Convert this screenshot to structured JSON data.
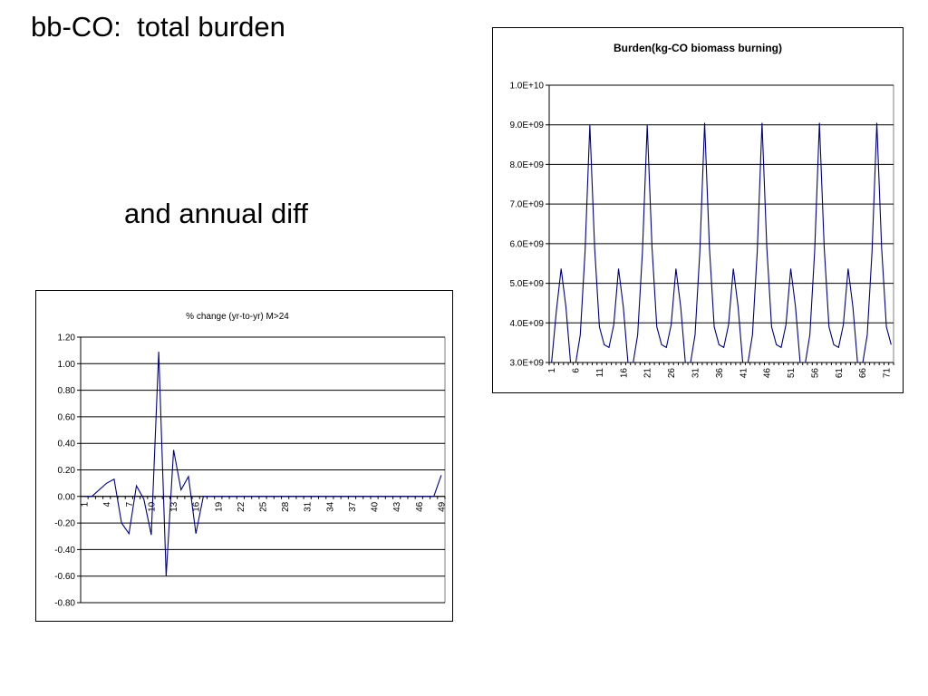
{
  "slide": {
    "title": "bb-CO:  total burden",
    "subtitle": "and annual diff"
  },
  "colors": {
    "series": "#000080",
    "grid": "#000000",
    "background": "#ffffff"
  },
  "chart_data": [
    {
      "type": "line",
      "title": "Burden(kg-CO biomass burning)",
      "xlabel": "",
      "ylabel": "",
      "ylim": [
        3000000000,
        10000000000
      ],
      "y_ticks": [
        3000000000,
        4000000000,
        5000000000,
        6000000000,
        7000000000,
        8000000000,
        9000000000,
        10000000000
      ],
      "y_tick_labels": [
        "3.0E+09",
        "4.0E+09",
        "5.0E+09",
        "6.0E+09",
        "7.0E+09",
        "8.0E+09",
        "9.0E+09",
        "1.0E+10"
      ],
      "x_tick_labels": [
        "1",
        "6",
        "11",
        "16",
        "21",
        "26",
        "31",
        "36",
        "41",
        "46",
        "51",
        "56",
        "61",
        "66",
        "71"
      ],
      "grid": true,
      "legend": "none",
      "series": [
        {
          "values": [
            3000000000,
            4300000000,
            5370000000,
            4400000000,
            2950000000,
            2950000000,
            3700000000,
            5800000000,
            9000000000,
            5900000000,
            3900000000,
            3450000000,
            3380000000,
            3950000000,
            5370000000,
            4400000000,
            2950000000,
            2950000000,
            3700000000,
            5800000000,
            9000000000,
            5900000000,
            3900000000,
            3450000000,
            3380000000,
            3950000000,
            5370000000,
            4400000000,
            2950000000,
            2950000000,
            3700000000,
            5800000000,
            9050000000,
            5900000000,
            3900000000,
            3450000000,
            3380000000,
            3950000000,
            5370000000,
            4400000000,
            2950000000,
            2950000000,
            3700000000,
            5800000000,
            9050000000,
            5900000000,
            3900000000,
            3450000000,
            3380000000,
            3950000000,
            5370000000,
            4400000000,
            2950000000,
            2950000000,
            3700000000,
            5800000000,
            9050000000,
            5900000000,
            3900000000,
            3450000000,
            3380000000,
            3950000000,
            5370000000,
            4400000000,
            2950000000,
            2950000000,
            3700000000,
            5800000000,
            9050000000,
            5900000000,
            3900000000,
            3450000000
          ]
        }
      ]
    },
    {
      "type": "line",
      "title": "% change (yr-to-yr) M>24",
      "xlabel": "",
      "ylabel": "",
      "ylim": [
        -0.8,
        1.2
      ],
      "y_ticks": [
        -0.8,
        -0.6,
        -0.4,
        -0.2,
        0,
        0.2,
        0.4,
        0.6,
        0.8,
        1.0,
        1.2
      ],
      "y_tick_labels": [
        "-0.80",
        "-0.60",
        "-0.40",
        "-0.20",
        "0.00",
        "0.20",
        "0.40",
        "0.60",
        "0.80",
        "1.00",
        "1.20"
      ],
      "x_tick_labels": [
        "1",
        "4",
        "7",
        "10",
        "13",
        "16",
        "19",
        "22",
        "25",
        "28",
        "31",
        "34",
        "37",
        "40",
        "43",
        "46",
        "49"
      ],
      "grid": true,
      "legend": "none",
      "series": [
        {
          "values": [
            0,
            0,
            0.05,
            0.1,
            0.13,
            -0.2,
            -0.28,
            0.08,
            -0.02,
            -0.29,
            1.09,
            -0.6,
            0.35,
            0.05,
            0.15,
            -0.28,
            0,
            0,
            0,
            0,
            0,
            0,
            0,
            0,
            0,
            0,
            0,
            0,
            0,
            0,
            0,
            0,
            0,
            0,
            0,
            0,
            0,
            0,
            0,
            0,
            0,
            0,
            0,
            0,
            0,
            0,
            0,
            0,
            0.16
          ]
        }
      ]
    }
  ]
}
